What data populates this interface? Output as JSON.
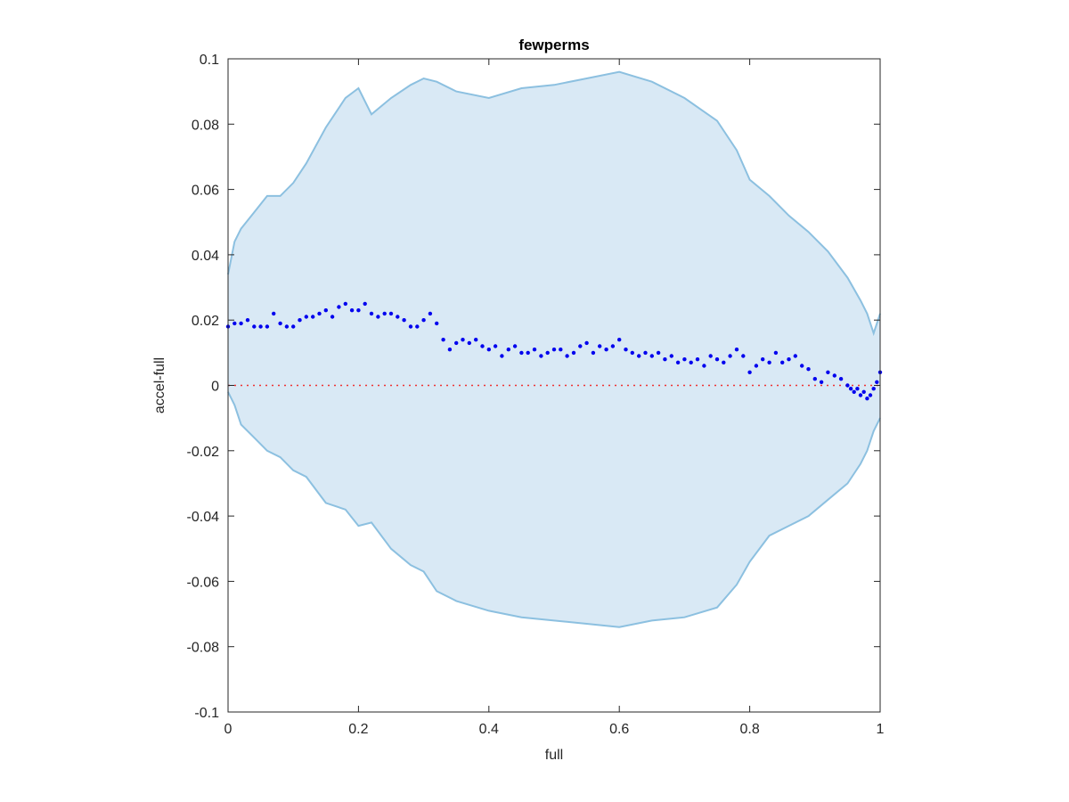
{
  "chart_data": {
    "type": "scatter",
    "title": "fewperms",
    "xlabel": "full",
    "ylabel": "accel-full",
    "xlim": [
      0,
      1
    ],
    "ylim": [
      -0.1,
      0.1
    ],
    "xticks": [
      0,
      0.2,
      0.4,
      0.6,
      0.8,
      1
    ],
    "xtick_labels": [
      "0",
      "0.2",
      "0.4",
      "0.6",
      "0.8",
      "1"
    ],
    "yticks": [
      -0.1,
      -0.08,
      -0.06,
      -0.04,
      -0.02,
      0,
      0.02,
      0.04,
      0.06,
      0.08,
      0.1
    ],
    "ytick_labels": [
      "-0.1",
      "-0.08",
      "-0.06",
      "-0.04",
      "-0.02",
      "0",
      "0.02",
      "0.04",
      "0.06",
      "0.08",
      "0.1"
    ],
    "grid": false,
    "colors": {
      "band_fill": "#d9e9f5",
      "band_edge": "#8cc0e0",
      "points": "#0000ee",
      "reference_line": "#ee3333"
    },
    "reference_line": {
      "y": 0,
      "style": "dotted"
    },
    "band": {
      "x": [
        0.0,
        0.01,
        0.02,
        0.04,
        0.06,
        0.08,
        0.1,
        0.12,
        0.15,
        0.18,
        0.2,
        0.22,
        0.25,
        0.28,
        0.3,
        0.32,
        0.35,
        0.4,
        0.45,
        0.5,
        0.55,
        0.6,
        0.65,
        0.7,
        0.75,
        0.78,
        0.8,
        0.83,
        0.86,
        0.89,
        0.92,
        0.95,
        0.97,
        0.98,
        0.99,
        1.0
      ],
      "upper": [
        0.034,
        0.044,
        0.048,
        0.053,
        0.058,
        0.058,
        0.062,
        0.068,
        0.079,
        0.088,
        0.091,
        0.083,
        0.088,
        0.092,
        0.094,
        0.093,
        0.09,
        0.088,
        0.091,
        0.092,
        0.094,
        0.096,
        0.093,
        0.088,
        0.081,
        0.072,
        0.063,
        0.058,
        0.052,
        0.047,
        0.041,
        0.033,
        0.026,
        0.022,
        0.016,
        0.022
      ],
      "lower": [
        -0.002,
        -0.006,
        -0.012,
        -0.016,
        -0.02,
        -0.022,
        -0.026,
        -0.028,
        -0.036,
        -0.038,
        -0.043,
        -0.042,
        -0.05,
        -0.055,
        -0.057,
        -0.063,
        -0.066,
        -0.069,
        -0.071,
        -0.072,
        -0.073,
        -0.074,
        -0.072,
        -0.071,
        -0.068,
        -0.061,
        -0.054,
        -0.046,
        -0.043,
        -0.04,
        -0.035,
        -0.03,
        -0.024,
        -0.02,
        -0.014,
        -0.01
      ]
    },
    "series": [
      {
        "x": [
          0.0,
          0.01,
          0.02,
          0.03,
          0.04,
          0.05,
          0.06,
          0.07,
          0.08,
          0.09,
          0.1,
          0.11,
          0.12,
          0.13,
          0.14,
          0.15,
          0.16,
          0.17,
          0.18,
          0.19,
          0.2,
          0.21,
          0.22,
          0.23,
          0.24,
          0.25,
          0.26,
          0.27,
          0.28,
          0.29,
          0.3,
          0.31,
          0.32,
          0.33,
          0.34,
          0.35,
          0.36,
          0.37,
          0.38,
          0.39,
          0.4,
          0.41,
          0.42,
          0.43,
          0.44,
          0.45,
          0.46,
          0.47,
          0.48,
          0.49,
          0.5,
          0.51,
          0.52,
          0.53,
          0.54,
          0.55,
          0.56,
          0.57,
          0.58,
          0.59,
          0.6,
          0.61,
          0.62,
          0.63,
          0.64,
          0.65,
          0.66,
          0.67,
          0.68,
          0.69,
          0.7,
          0.71,
          0.72,
          0.73,
          0.74,
          0.75,
          0.76,
          0.77,
          0.78,
          0.79,
          0.8,
          0.81,
          0.82,
          0.83,
          0.84,
          0.85,
          0.86,
          0.87,
          0.88,
          0.89,
          0.9,
          0.91,
          0.92,
          0.93,
          0.94,
          0.95,
          0.955,
          0.96,
          0.965,
          0.97,
          0.975,
          0.98,
          0.985,
          0.99,
          0.995,
          1.0
        ],
        "y": [
          0.018,
          0.019,
          0.019,
          0.02,
          0.018,
          0.018,
          0.018,
          0.022,
          0.019,
          0.018,
          0.018,
          0.02,
          0.021,
          0.021,
          0.022,
          0.023,
          0.021,
          0.024,
          0.025,
          0.023,
          0.023,
          0.025,
          0.022,
          0.021,
          0.022,
          0.022,
          0.021,
          0.02,
          0.018,
          0.018,
          0.02,
          0.022,
          0.019,
          0.014,
          0.011,
          0.013,
          0.014,
          0.013,
          0.014,
          0.012,
          0.011,
          0.012,
          0.009,
          0.011,
          0.012,
          0.01,
          0.01,
          0.011,
          0.009,
          0.01,
          0.011,
          0.011,
          0.009,
          0.01,
          0.012,
          0.013,
          0.01,
          0.012,
          0.011,
          0.012,
          0.014,
          0.011,
          0.01,
          0.009,
          0.01,
          0.009,
          0.01,
          0.008,
          0.009,
          0.007,
          0.008,
          0.007,
          0.008,
          0.006,
          0.009,
          0.008,
          0.007,
          0.009,
          0.011,
          0.009,
          0.004,
          0.006,
          0.008,
          0.007,
          0.01,
          0.007,
          0.008,
          0.009,
          0.006,
          0.005,
          0.002,
          0.001,
          0.004,
          0.003,
          0.002,
          0.0,
          -0.001,
          -0.002,
          -0.001,
          -0.003,
          -0.002,
          -0.004,
          -0.003,
          -0.001,
          0.001,
          0.004
        ]
      }
    ]
  }
}
